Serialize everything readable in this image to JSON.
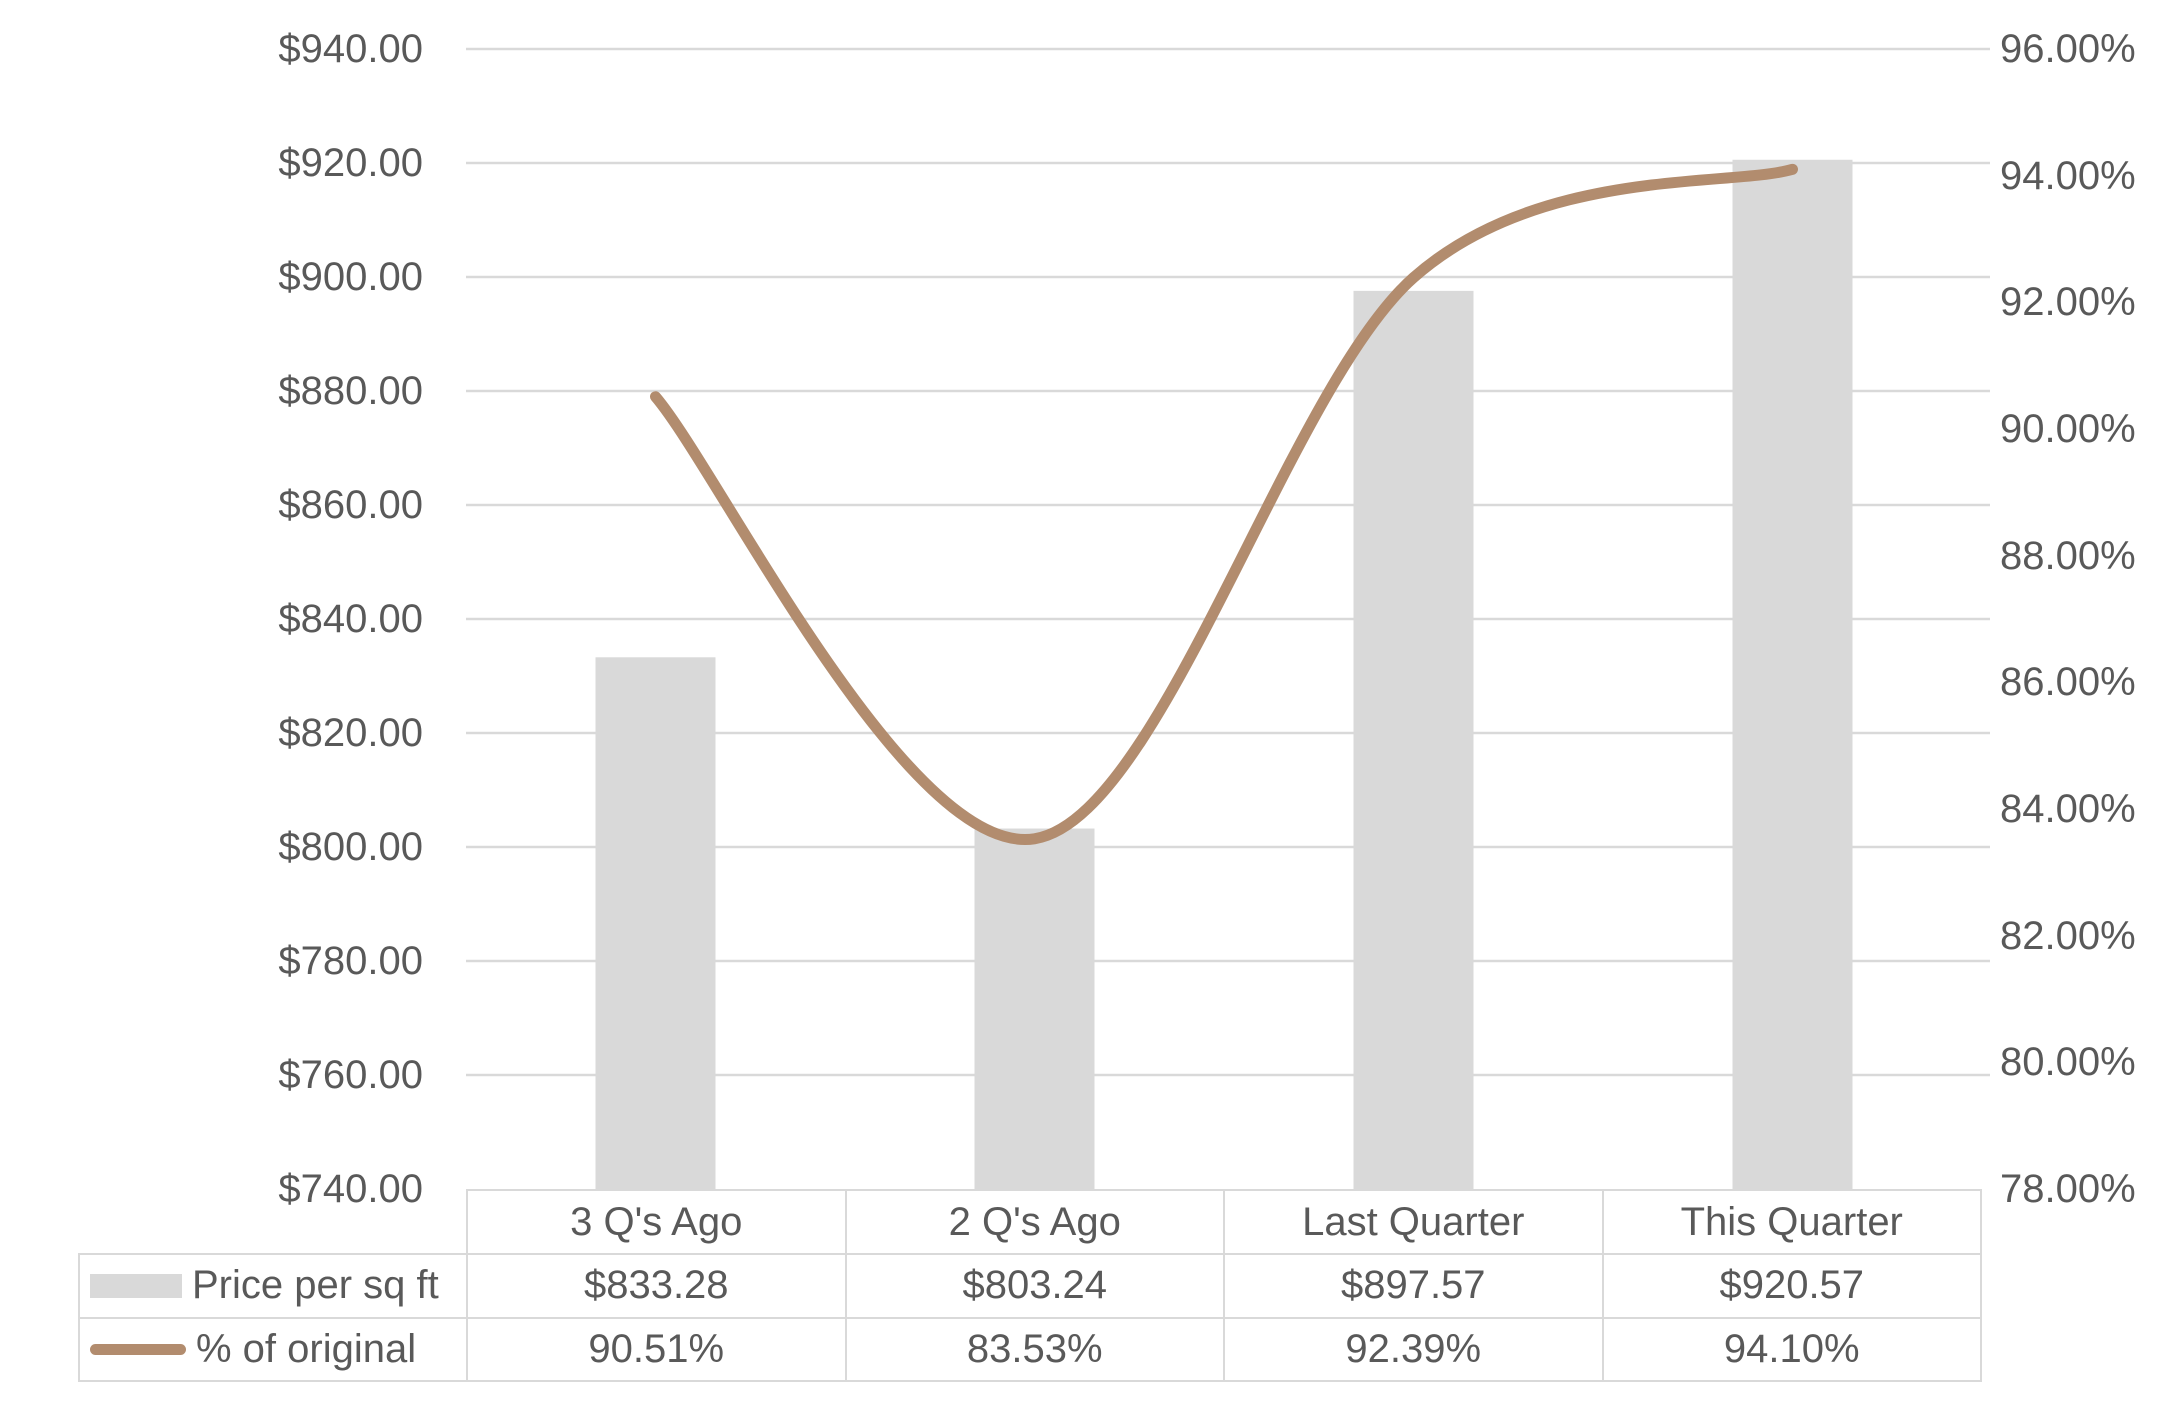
{
  "chart_data": {
    "type": "combo",
    "subtype": "bar+smooth-line",
    "categories": [
      "3 Q's Ago",
      "2 Q's Ago",
      "Last Quarter",
      "This Quarter"
    ],
    "series": [
      {
        "name": "Price per sq ft",
        "chart_type": "bar",
        "axis": "left",
        "color": "#d9d9d9",
        "values": [
          833.28,
          803.24,
          897.57,
          920.57
        ],
        "value_labels": [
          "$833.28",
          "$803.24",
          "$897.57",
          "$920.57"
        ]
      },
      {
        "name": "% of original",
        "chart_type": "line",
        "axis": "right",
        "color": "#b28c6e",
        "values": [
          90.51,
          83.53,
          92.39,
          94.1
        ],
        "value_labels": [
          "90.51%",
          "83.53%",
          "92.39%",
          "94.10%"
        ]
      }
    ],
    "left_axis": {
      "min": 740,
      "max": 940,
      "step": 20,
      "labels": [
        "$940.00",
        "$920.00",
        "$900.00",
        "$880.00",
        "$860.00",
        "$840.00",
        "$820.00",
        "$800.00",
        "$780.00",
        "$760.00",
        "$740.00"
      ]
    },
    "right_axis": {
      "min": 78,
      "max": 96,
      "step": 2,
      "labels": [
        "96.00%",
        "94.00%",
        "92.00%",
        "90.00%",
        "88.00%",
        "86.00%",
        "84.00%",
        "82.00%",
        "80.00%",
        "78.00%"
      ]
    },
    "grid": "horizontal",
    "legend_position": "data-table-left",
    "title": ""
  },
  "styles": {
    "background": "#ffffff",
    "text_color": "#595959",
    "grid_color": "#d9d9d9",
    "table_border_color": "#d9d9d9",
    "bar_color": "#d9d9d9",
    "line_color": "#b28c6e"
  }
}
